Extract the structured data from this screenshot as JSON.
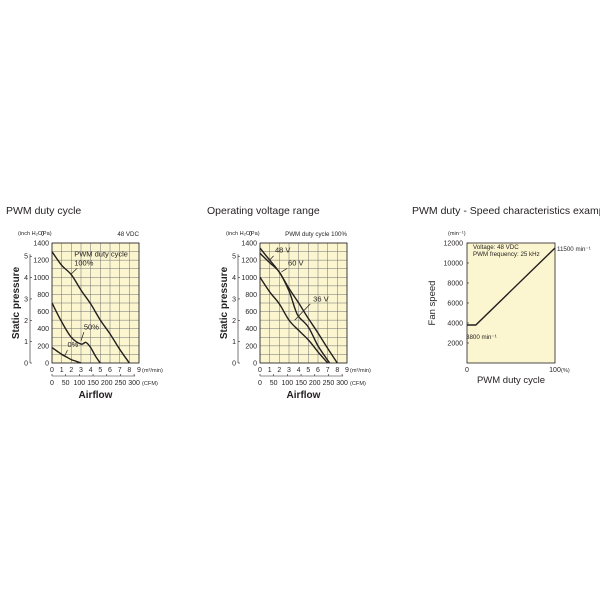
{
  "titles": {
    "left": "PWM duty cycle",
    "middle": "Operating voltage range",
    "right": "PWM duty - Speed characteristics example"
  },
  "colors": {
    "plot_bg": "#fbf6cf",
    "line": "#231f20",
    "grid": "#6d6e71"
  },
  "chart_data": [
    {
      "type": "line",
      "title": "PWM duty cycle",
      "condition": "48 VDC",
      "legend_title": "PWM duty cycle",
      "ylabel": "Static pressure",
      "xlabel": "Airflow",
      "y_units": {
        "inch": "(inch H₂O)",
        "pa": "(Pa)"
      },
      "x_units": {
        "m3": "(m³/min)",
        "cfm": "(CFM)"
      },
      "xlim": [
        0,
        9
      ],
      "ylim": [
        0,
        1400
      ],
      "x_ticks": [
        "0",
        "1",
        "2",
        "3",
        "4",
        "5",
        "6",
        "7",
        "8",
        "9"
      ],
      "y_ticks_pa": [
        "0",
        "200",
        "400",
        "600",
        "800",
        "1000",
        "1200",
        "1400"
      ],
      "y_ticks_inch": [
        "0",
        "1",
        "2",
        "3",
        "4",
        "5"
      ],
      "cfm_ticks": [
        "0",
        "50",
        "100",
        "150",
        "200",
        "250",
        "300"
      ],
      "series": [
        {
          "name": "100%",
          "x": [
            0,
            1,
            2,
            3,
            4,
            5,
            6,
            7,
            8
          ],
          "y": [
            1300,
            1140,
            1030,
            850,
            690,
            500,
            340,
            160,
            0
          ]
        },
        {
          "name": "50%",
          "x": [
            0,
            1,
            2,
            3,
            3.5,
            4,
            4.5,
            5
          ],
          "y": [
            700,
            480,
            300,
            220,
            240,
            180,
            80,
            0
          ]
        },
        {
          "name": "0%",
          "x": [
            0,
            0.5,
            1,
            1.5,
            2,
            2.5,
            3
          ],
          "y": [
            180,
            140,
            100,
            70,
            40,
            20,
            0
          ]
        }
      ]
    },
    {
      "type": "line",
      "title": "Operating voltage range",
      "condition": "PWM duty cycle 100%",
      "ylabel": "Static pressure",
      "xlabel": "Airflow",
      "y_units": {
        "inch": "(inch H₂O)",
        "pa": "(Pa)"
      },
      "x_units": {
        "m3": "(m³/min)",
        "cfm": "(CFM)"
      },
      "xlim": [
        0,
        9
      ],
      "ylim": [
        0,
        1400
      ],
      "x_ticks": [
        "0",
        "1",
        "2",
        "3",
        "4",
        "5",
        "6",
        "7",
        "8",
        "9"
      ],
      "y_ticks_pa": [
        "0",
        "200",
        "400",
        "600",
        "800",
        "1000",
        "1200",
        "1400"
      ],
      "y_ticks_inch": [
        "0",
        "1",
        "2",
        "3",
        "4",
        "5"
      ],
      "cfm_ticks": [
        "0",
        "50",
        "100",
        "150",
        "200",
        "250",
        "300"
      ],
      "series": [
        {
          "name": "48 V",
          "x": [
            0,
            1,
            2,
            3,
            4,
            5,
            6,
            7,
            8
          ],
          "y": [
            1340,
            1200,
            1060,
            870,
            700,
            520,
            350,
            170,
            0
          ]
        },
        {
          "name": "60 V",
          "x": [
            0,
            1,
            2,
            3,
            3.6,
            4,
            5,
            6,
            7.2
          ],
          "y": [
            1280,
            1170,
            1060,
            840,
            640,
            540,
            420,
            200,
            0
          ]
        },
        {
          "name": "36 V",
          "x": [
            0,
            1,
            2,
            3,
            4,
            5,
            6,
            7
          ],
          "y": [
            1000,
            830,
            690,
            500,
            380,
            270,
            130,
            0
          ]
        }
      ]
    },
    {
      "type": "line",
      "title": "PWM duty - Speed characteristics example",
      "conditions": [
        "Voltage: 48 VDC",
        "PWM frequency: 25 kHz"
      ],
      "ylabel": "Fan speed",
      "xlabel": "PWM duty cycle",
      "y_unit": "(min⁻¹)",
      "x_unit": "(%)",
      "xlim": [
        0,
        100
      ],
      "ylim": [
        0,
        12000
      ],
      "x_ticks": [
        "0",
        "100"
      ],
      "y_ticks": [
        "2000",
        "4000",
        "6000",
        "8000",
        "10000",
        "12000"
      ],
      "series": [
        {
          "x": [
            0,
            10,
            100
          ],
          "y": [
            3800,
            3800,
            11500
          ]
        }
      ],
      "annotations": [
        "3800 min⁻¹",
        "11500 min⁻¹"
      ]
    }
  ]
}
